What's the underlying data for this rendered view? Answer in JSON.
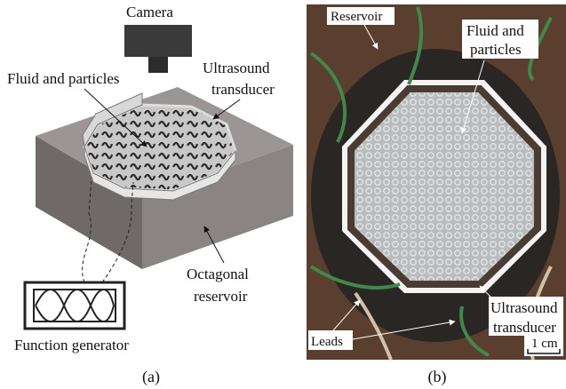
{
  "panel_a": {
    "caption": "(a)",
    "labels": [
      {
        "lines": [
          "Camera"
        ]
      },
      {
        "lines": [
          "Fluid and particles"
        ]
      },
      {
        "lines": [
          "Ultrasound",
          "transducer"
        ]
      },
      {
        "lines": [
          "Octagonal",
          "reservoir"
        ]
      },
      {
        "lines": [
          "Function generator"
        ]
      }
    ]
  },
  "panel_b": {
    "caption": "(b)",
    "labels": [
      {
        "lines": [
          "Reservoir"
        ]
      },
      {
        "lines": [
          "Fluid and",
          "particles"
        ]
      },
      {
        "lines": [
          "Ultrasound",
          "transducer"
        ]
      },
      {
        "lines": [
          "Leads"
        ]
      }
    ],
    "scale_bar": "1 cm"
  }
}
